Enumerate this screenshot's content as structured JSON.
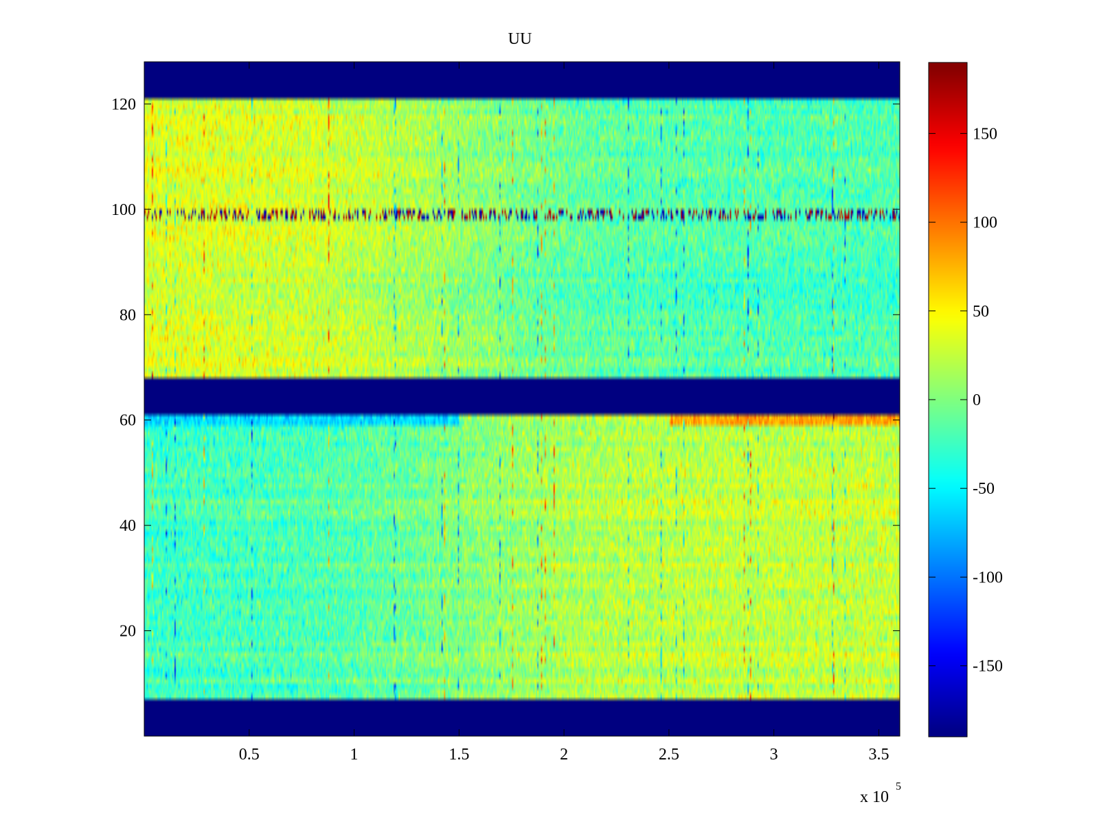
{
  "chart_data": {
    "type": "heatmap",
    "title": "UU",
    "xlabel": "",
    "ylabel": "",
    "x_multiplier_label": "x 10",
    "x_multiplier_exponent": "5",
    "xlim": [
      0,
      3.6
    ],
    "ylim": [
      0,
      128
    ],
    "x_ticks": [
      0.5,
      1,
      1.5,
      2,
      2.5,
      3,
      3.5
    ],
    "x_tick_labels": [
      "0.5",
      "1",
      "1.5",
      "2",
      "2.5",
      "3",
      "3.5"
    ],
    "y_ticks": [
      20,
      40,
      60,
      80,
      100,
      120
    ],
    "y_tick_labels": [
      "20",
      "40",
      "60",
      "80",
      "100",
      "120"
    ],
    "colormap": "jet",
    "clim": [
      -190,
      190
    ],
    "colorbar_ticks": [
      150,
      100,
      50,
      0,
      -50,
      -100,
      -150
    ],
    "colorbar_tick_labels": [
      "150",
      "100",
      "50",
      "0",
      "-50",
      "-100",
      "-150"
    ],
    "fill_value": -190,
    "masked_y_ranges": [
      [
        0,
        7
      ],
      [
        61,
        68
      ],
      [
        121,
        128
      ]
    ],
    "trend_regions": [
      {
        "y_range": [
          68,
          121
        ],
        "x_range": [
          0,
          1.5
        ],
        "mean_value": 35
      },
      {
        "y_range": [
          68,
          121
        ],
        "x_range": [
          1.5,
          3.6
        ],
        "mean_value": -20
      },
      {
        "y_range": [
          7,
          61
        ],
        "x_range": [
          0,
          1.5
        ],
        "mean_value": -25
      },
      {
        "y_range": [
          7,
          61
        ],
        "x_range": [
          1.5,
          3.6
        ],
        "mean_value": 25
      }
    ],
    "notable_rows": [
      {
        "y": 99,
        "description": "row of alternating extreme values (dark red / dark blue spikes)"
      },
      {
        "y": 60,
        "x_range": [
          0,
          1.5
        ],
        "mean_value": -60
      },
      {
        "y": 60,
        "x_range": [
          2.5,
          3.6
        ],
        "mean_value": 80
      }
    ]
  }
}
